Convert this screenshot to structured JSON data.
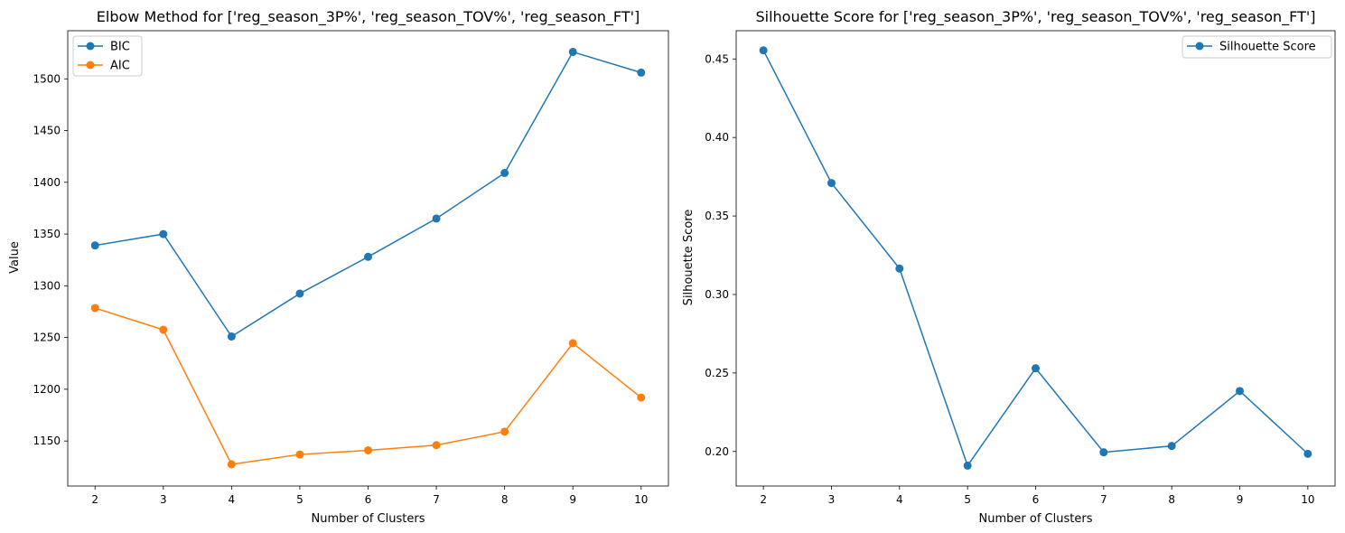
{
  "chart_data": [
    {
      "type": "line",
      "title": "Elbow Method for ['reg_season_3P%', 'reg_season_TOV%', 'reg_season_FT']",
      "xlabel": "Number of Clusters",
      "ylabel": "Value",
      "x": [
        2,
        3,
        4,
        5,
        6,
        7,
        8,
        9,
        10
      ],
      "xlim": [
        1.6,
        10.4
      ],
      "ylim": [
        1106.5,
        1546.5
      ],
      "xticks": [
        2,
        3,
        4,
        5,
        6,
        7,
        8,
        9,
        10
      ],
      "yticks": [
        1150,
        1200,
        1250,
        1300,
        1350,
        1400,
        1450,
        1500
      ],
      "grid": false,
      "legend": "upper-left",
      "series": [
        {
          "name": "BIC",
          "color": "#1f77b4",
          "marker": "circle",
          "values": [
            1339,
            1350,
            1251,
            1292.5,
            1328,
            1365,
            1409,
            1526,
            1506
          ]
        },
        {
          "name": "AIC",
          "color": "#ff7f0e",
          "marker": "circle",
          "values": [
            1278.5,
            1257.5,
            1127.5,
            1137,
            1141,
            1146,
            1159,
            1244.5,
            1192
          ]
        }
      ]
    },
    {
      "type": "line",
      "title": "Silhouette Score for ['reg_season_3P%', 'reg_season_TOV%', 'reg_season_FT']",
      "xlabel": "Number of Clusters",
      "ylabel": "Silhouette Score",
      "x": [
        2,
        3,
        4,
        5,
        6,
        7,
        8,
        9,
        10
      ],
      "xlim": [
        1.6,
        10.4
      ],
      "ylim": [
        0.178,
        0.468
      ],
      "xticks": [
        2,
        3,
        4,
        5,
        6,
        7,
        8,
        9,
        10
      ],
      "yticks": [
        "0.20",
        "0.25",
        "0.30",
        "0.35",
        "0.40",
        "0.45"
      ],
      "grid": false,
      "legend": "upper-right",
      "series": [
        {
          "name": "Silhouette Score",
          "color": "#1f77b4",
          "marker": "circle",
          "values": [
            0.4555,
            0.371,
            0.3165,
            0.191,
            0.253,
            0.1995,
            0.2035,
            0.2385,
            0.1985
          ]
        }
      ]
    }
  ]
}
